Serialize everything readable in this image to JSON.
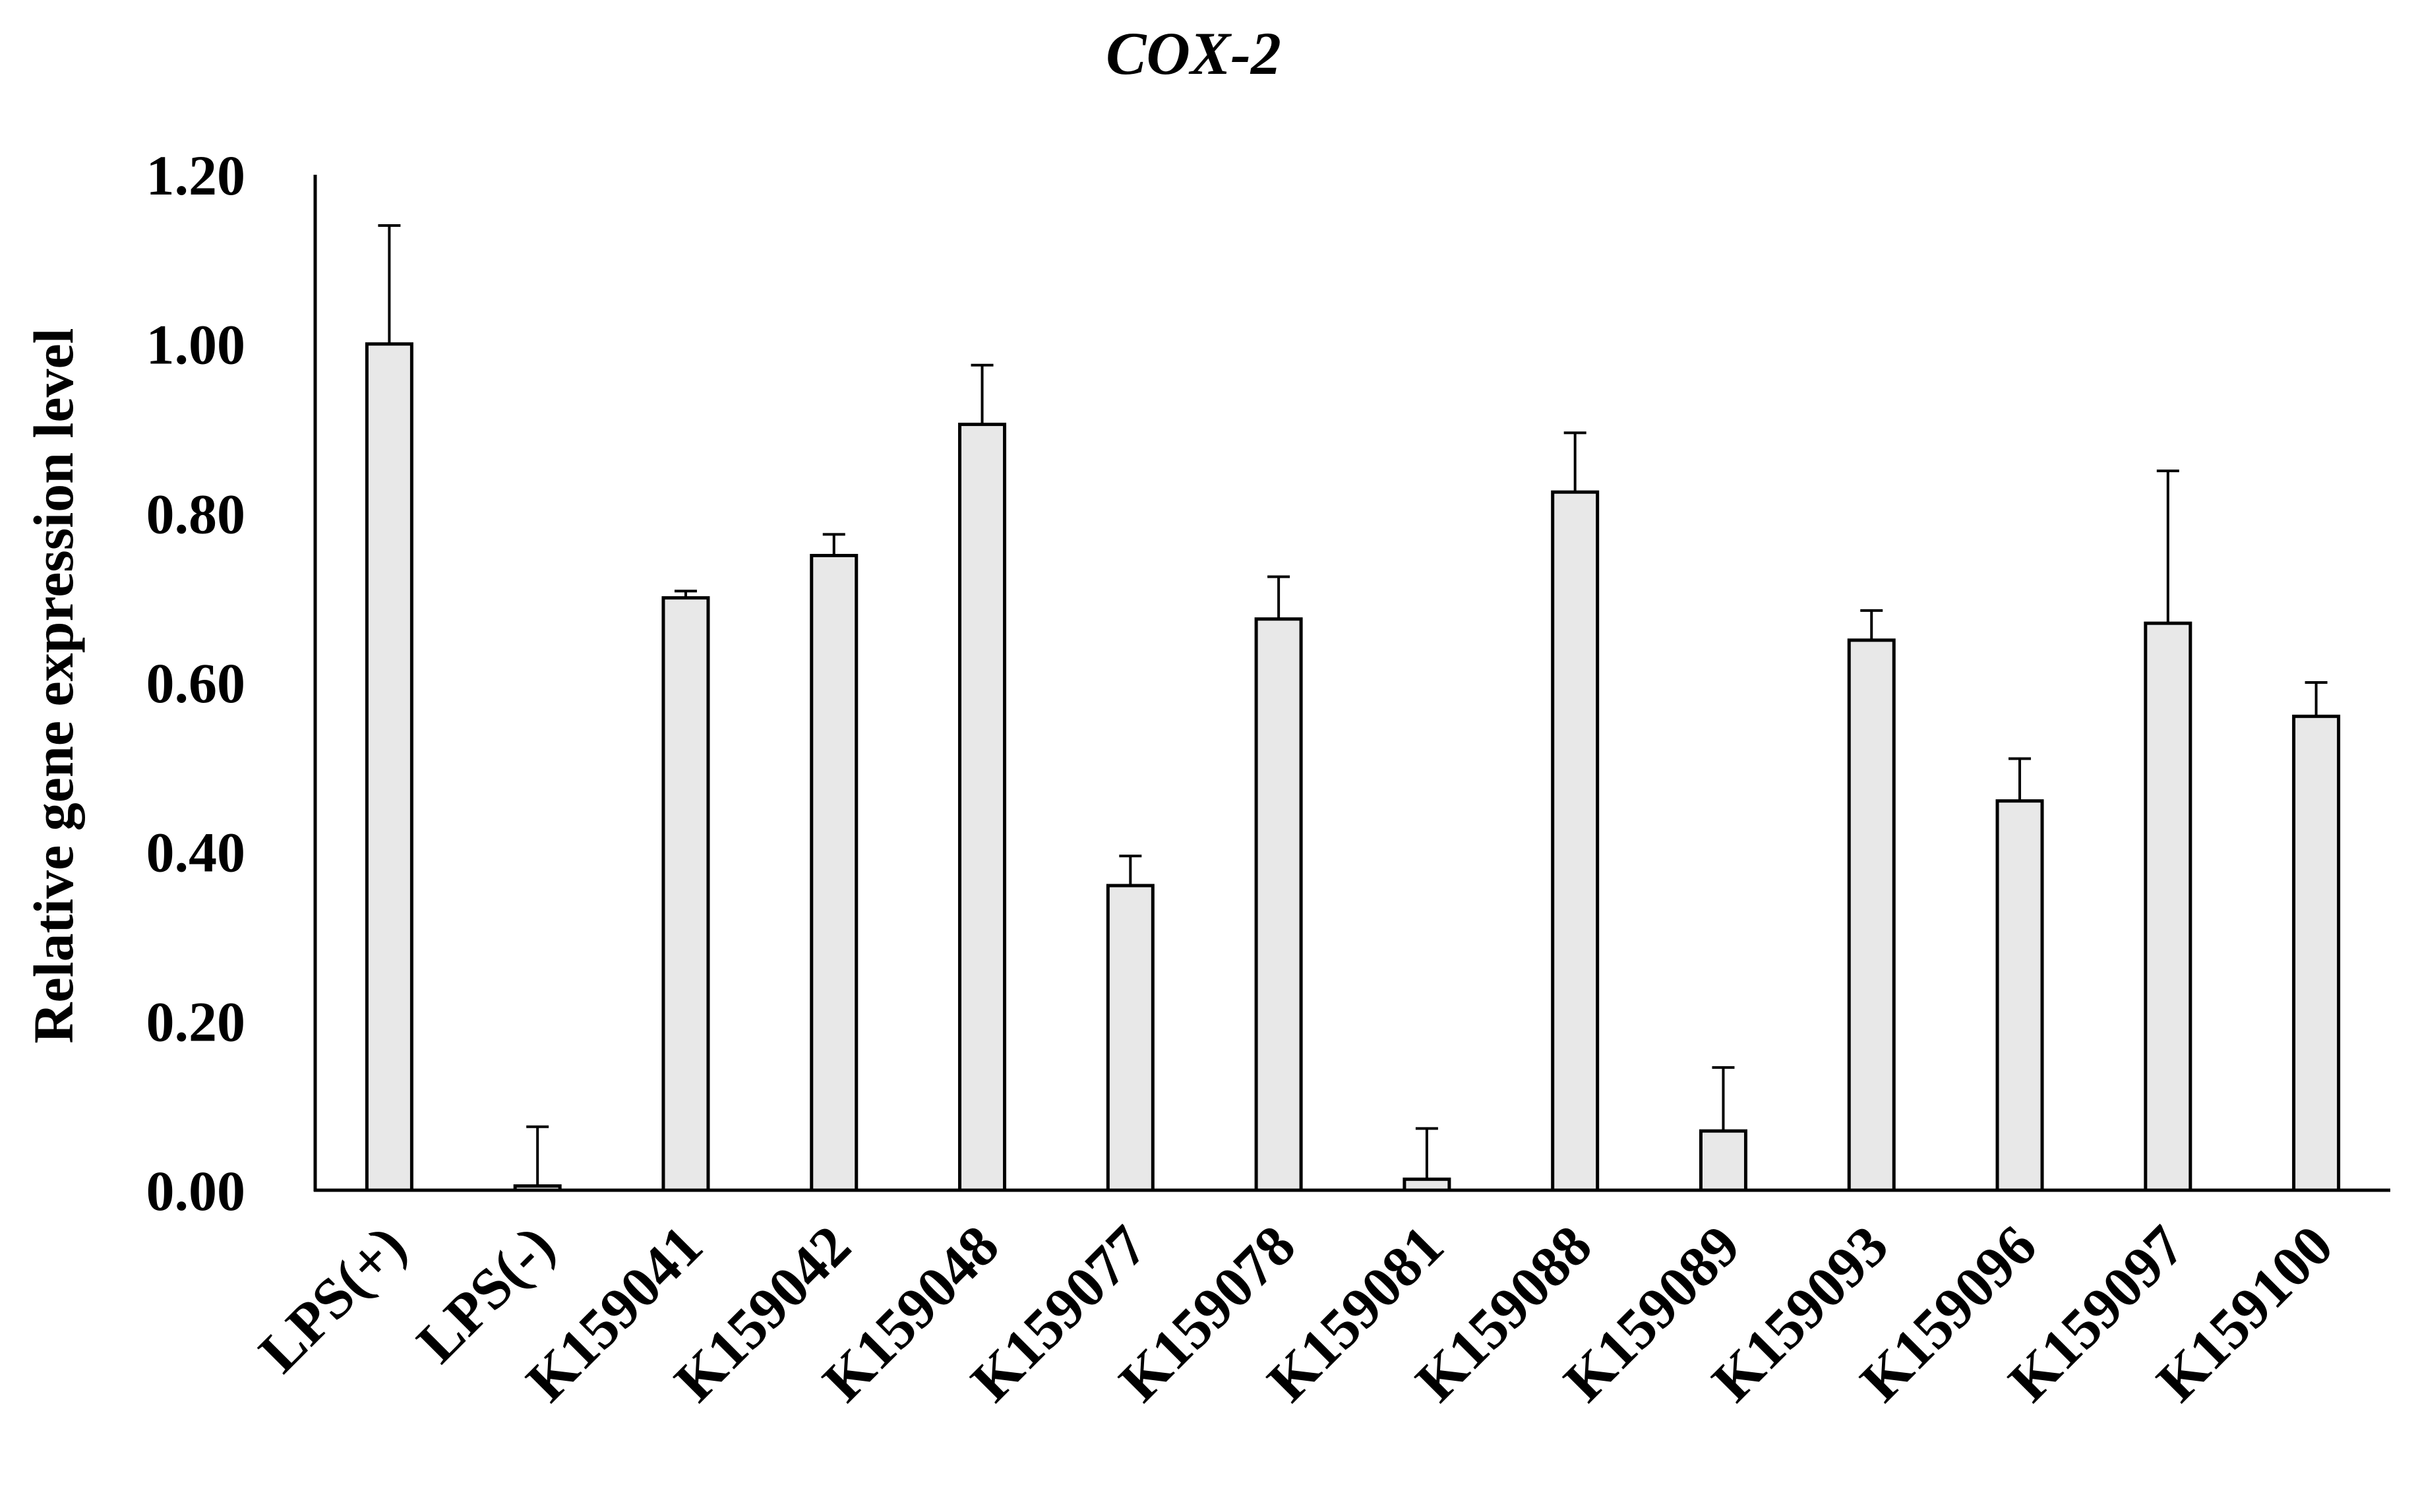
{
  "chart_data": {
    "type": "bar",
    "title": "COX-2",
    "xlabel": "",
    "ylabel": "Relative gene expression level",
    "ylim": [
      0,
      1.2
    ],
    "yticks": [
      "0.00",
      "0.20",
      "0.40",
      "0.60",
      "0.80",
      "1.00",
      "1.20"
    ],
    "grid": false,
    "categories": [
      "LPS(+)",
      "LPS(-)",
      "K159041",
      "K159042",
      "K159048",
      "K159077",
      "K159078",
      "K159081",
      "K159088",
      "K159089",
      "K159093",
      "K159096",
      "K159097",
      "K159100"
    ],
    "series": [
      {
        "values": [
          1.0,
          0.005,
          0.7,
          0.75,
          0.905,
          0.36,
          0.675,
          0.013,
          0.825,
          0.07,
          0.65,
          0.46,
          0.67,
          0.56
        ],
        "error": [
          0.14,
          0.07,
          0.008,
          0.025,
          0.07,
          0.035,
          0.05,
          0.06,
          0.07,
          0.075,
          0.035,
          0.05,
          0.18,
          0.04
        ]
      }
    ],
    "colors": {
      "bar_fill": "#e8e8e8",
      "bar_stroke": "#000000",
      "axis": "#000000",
      "text": "#000000"
    }
  }
}
